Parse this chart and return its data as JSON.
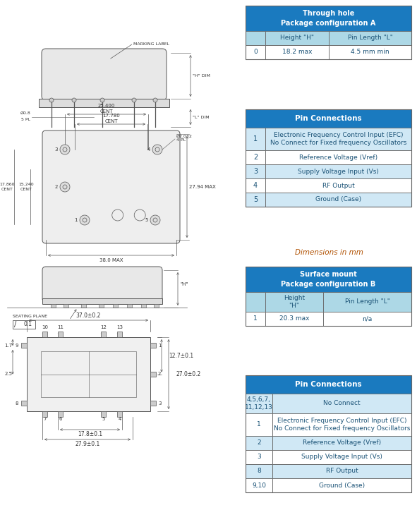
{
  "table1_title": "Through hole\nPackage configuration A",
  "table1_col_headers": [
    "",
    "Height \"H\"",
    "Pin Length \"L\""
  ],
  "table1_rows": [
    [
      "0",
      "18.2 max",
      "4.5 mm min"
    ]
  ],
  "table2_title": "Pin Connections",
  "table2_rows": [
    [
      "1",
      "Electronic Frequency Control Input (EFC)\nNo Connect for Fixed frequency Oscillators"
    ],
    [
      "2",
      "Reference Voltage (Vref)"
    ],
    [
      "3",
      "Supply Voltage Input (Vs)"
    ],
    [
      "4",
      "RF Output"
    ],
    [
      "5",
      "Ground (Case)"
    ]
  ],
  "dim_text": "Dimensions in mm",
  "table3_title": "Surface mount\nPackage configuration B",
  "table3_col_headers": [
    "",
    "Height\n\"H\"",
    "Pin Length \"L\""
  ],
  "table3_rows": [
    [
      "1",
      "20.3 max",
      "n/a"
    ]
  ],
  "table4_title": "Pin Connections",
  "table4_rows": [
    [
      "4,5,6,7,\n11,12,13",
      "No Connect"
    ],
    [
      "1",
      "Electronic Frequency Control Input (EFC)\nNo Connect for Fixed frequency Oscillators"
    ],
    [
      "2",
      "Reference Voltage (Vref)"
    ],
    [
      "3",
      "Supply Voltage Input (Vs)"
    ],
    [
      "8",
      "RF Output"
    ],
    [
      "9,10",
      "Ground (Case)"
    ]
  ],
  "header_bg": "#1a7abf",
  "subheader_bg": "#add8e6",
  "alt_row_bg": "#d0e8f5",
  "white_bg": "#ffffff",
  "header_text": "#ffffff",
  "data_text": "#1a5276",
  "border_color": "#666666"
}
